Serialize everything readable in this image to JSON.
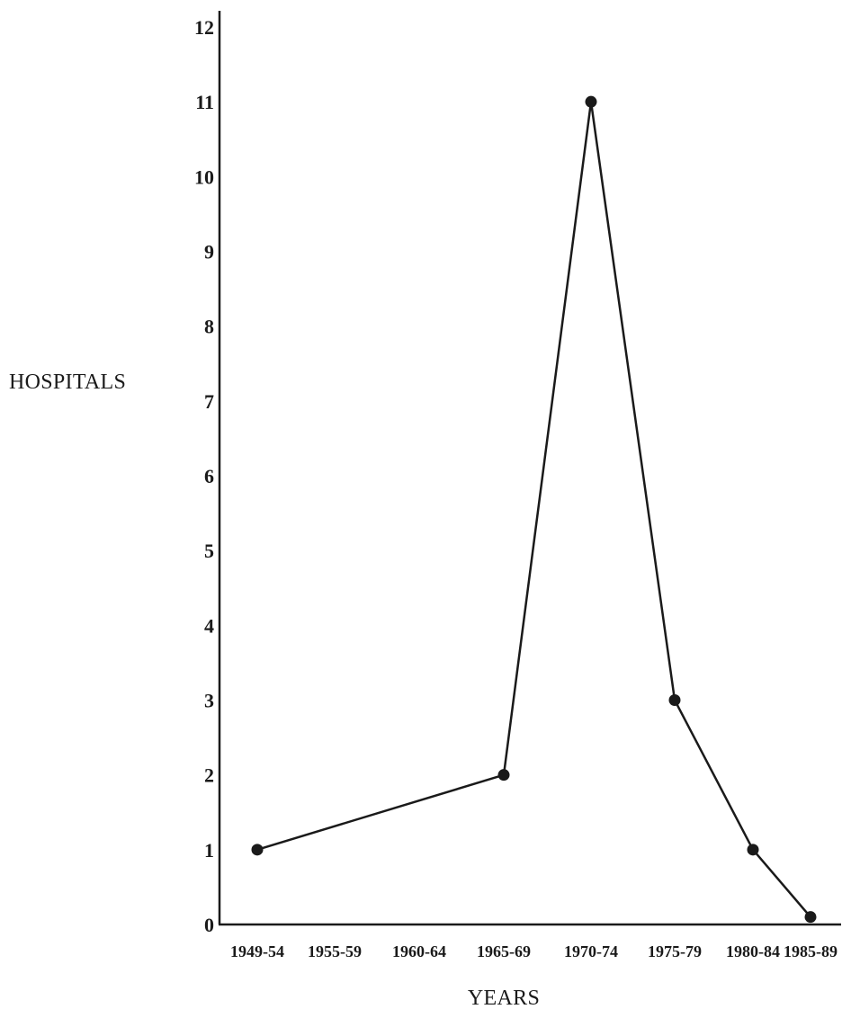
{
  "chart_data": {
    "type": "line",
    "title": "",
    "xlabel": "YEARS",
    "ylabel": "HOSPITALS",
    "categories": [
      "1949-54",
      "1955-59",
      "1960-64",
      "1965-69",
      "1970-74",
      "1975-79",
      "1980-84",
      "1985-89"
    ],
    "points": [
      {
        "x": "1949-54",
        "y": 1
      },
      {
        "x": "1965-69",
        "y": 2
      },
      {
        "x": "1970-74",
        "y": 11
      },
      {
        "x": "1975-79",
        "y": 3
      },
      {
        "x": "1980-84",
        "y": 1
      },
      {
        "x": "1985-89",
        "y": 0.1
      }
    ],
    "ylim": [
      0,
      12
    ],
    "yticks": [
      0,
      1,
      2,
      3,
      4,
      5,
      6,
      7,
      8,
      9,
      10,
      11,
      12
    ],
    "grid": false,
    "line_color": "#1a1a1a"
  }
}
